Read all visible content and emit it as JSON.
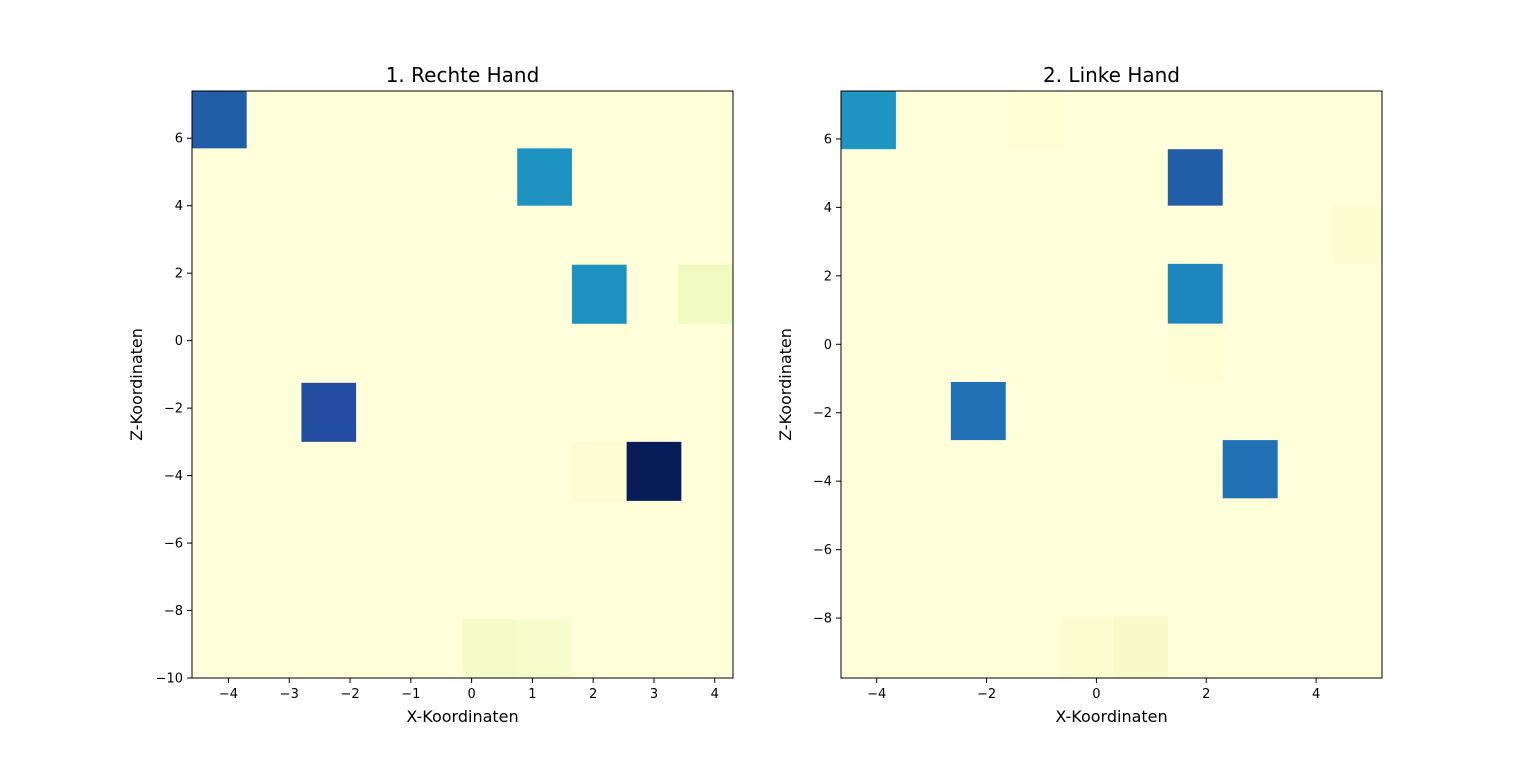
{
  "chart_data": [
    {
      "type": "heatmap",
      "title": "1. Rechte Hand",
      "xlabel": "X-Koordinaten",
      "ylabel": "Z-Koordinaten",
      "xlim": [
        -4.6,
        4.3
      ],
      "ylim": [
        -10,
        7.4
      ],
      "xticks": [
        -4,
        -3,
        -2,
        -1,
        0,
        1,
        2,
        3,
        4
      ],
      "yticks": [
        -10,
        -8,
        -6,
        -4,
        -2,
        0,
        2,
        4,
        6
      ],
      "colormap": "YlGnBu",
      "background_color": "#ffffd9",
      "cells": [
        {
          "x": [
            -4.6,
            -3.7
          ],
          "y": [
            5.7,
            7.4
          ],
          "color": "#225ea8"
        },
        {
          "x": [
            0.75,
            1.65
          ],
          "y": [
            4.0,
            5.7
          ],
          "color": "#1d91c0"
        },
        {
          "x": [
            1.65,
            2.55
          ],
          "y": [
            0.5,
            2.25
          ],
          "color": "#1d91c0"
        },
        {
          "x": [
            3.4,
            4.3
          ],
          "y": [
            0.5,
            2.25
          ],
          "color": "#f0f9bf"
        },
        {
          "x": [
            -2.8,
            -1.9
          ],
          "y": [
            -3.0,
            -1.25
          ],
          "color": "#234da0"
        },
        {
          "x": [
            1.65,
            2.55
          ],
          "y": [
            -4.75,
            -3.0
          ],
          "color": "#fbfdd3"
        },
        {
          "x": [
            2.55,
            3.45
          ],
          "y": [
            -4.75,
            -3.0
          ],
          "color": "#081d58"
        },
        {
          "x": [
            -0.15,
            0.75
          ],
          "y": [
            -10.0,
            -8.25
          ],
          "color": "#f5fbc8"
        },
        {
          "x": [
            0.75,
            1.65
          ],
          "y": [
            -10.0,
            -8.25
          ],
          "color": "#f7fccc"
        }
      ]
    },
    {
      "type": "heatmap",
      "title": "2. Linke Hand",
      "xlabel": "X-Koordinaten",
      "ylabel": "Z-Koordinaten",
      "xlim": [
        -4.65,
        5.2
      ],
      "ylim": [
        -9.75,
        7.4
      ],
      "xticks": [
        -4,
        -2,
        0,
        2,
        4
      ],
      "yticks": [
        -8,
        -6,
        -4,
        -2,
        0,
        2,
        4,
        6
      ],
      "colormap": "YlGnBu",
      "background_color": "#ffffd9",
      "cells": [
        {
          "x": [
            -4.65,
            -3.65
          ],
          "y": [
            5.7,
            7.4
          ],
          "color": "#1f95c1"
        },
        {
          "x": [
            -1.6,
            -0.6
          ],
          "y": [
            5.7,
            7.4
          ],
          "color": "#fcfed4"
        },
        {
          "x": [
            1.3,
            2.3
          ],
          "y": [
            4.05,
            5.7
          ],
          "color": "#225ea8"
        },
        {
          "x": [
            4.3,
            5.2
          ],
          "y": [
            2.35,
            4.05
          ],
          "color": "#fbfdd1"
        },
        {
          "x": [
            1.3,
            2.3
          ],
          "y": [
            0.6,
            2.35
          ],
          "color": "#1d86bf"
        },
        {
          "x": [
            1.3,
            2.3
          ],
          "y": [
            -1.1,
            0.6
          ],
          "color": "#fcfed4"
        },
        {
          "x": [
            -2.65,
            -1.65
          ],
          "y": [
            -2.8,
            -1.1
          ],
          "color": "#2171b4"
        },
        {
          "x": [
            2.3,
            3.3
          ],
          "y": [
            -4.5,
            -2.8
          ],
          "color": "#2170b3"
        },
        {
          "x": [
            -0.65,
            0.3
          ],
          "y": [
            -9.75,
            -7.95
          ],
          "color": "#fbfdd1"
        },
        {
          "x": [
            0.3,
            1.3
          ],
          "y": [
            -9.75,
            -7.95
          ],
          "color": "#f7fbc9"
        }
      ]
    }
  ]
}
